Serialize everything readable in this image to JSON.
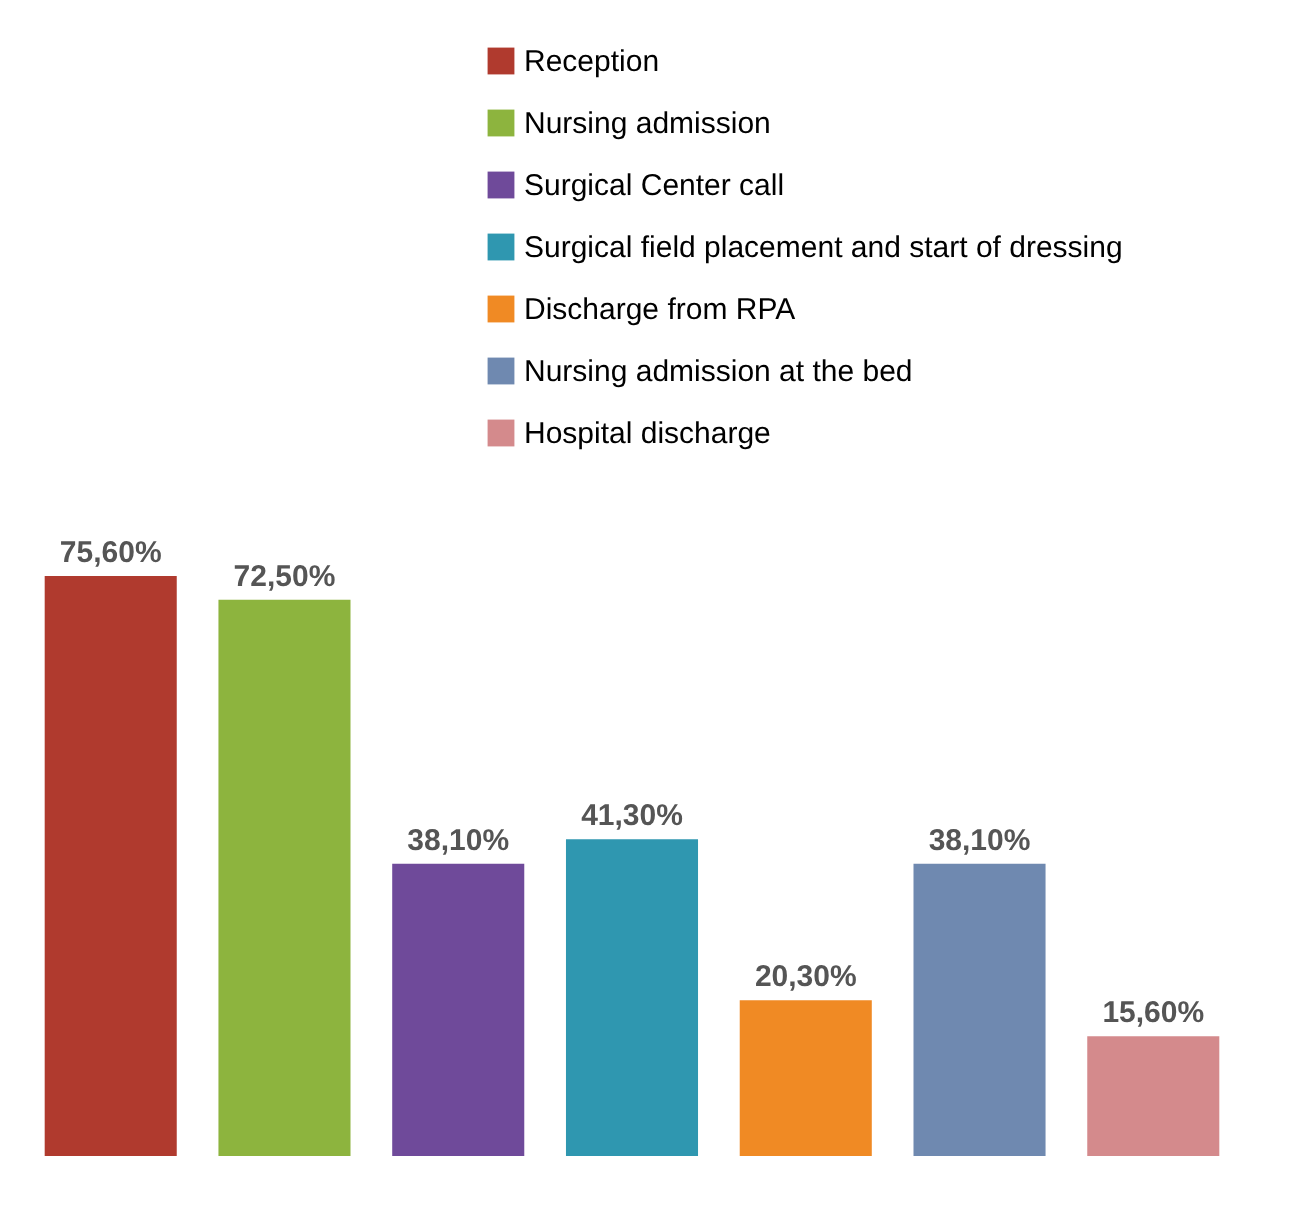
{
  "chart_data": {
    "type": "bar",
    "categories": [
      null,
      null,
      null,
      null,
      null,
      null,
      null
    ],
    "stacked": true,
    "series": [
      {
        "name": "Reception",
        "color": "#b03a2e",
        "values": [
          75.6,
          null,
          null,
          null,
          null,
          null,
          null
        ],
        "value_labels": [
          "75,60%",
          null,
          null,
          null,
          null,
          null,
          null
        ]
      },
      {
        "name": "Nursing admission",
        "color": "#8db43e",
        "values": [
          null,
          72.5,
          null,
          null,
          null,
          null,
          null
        ],
        "value_labels": [
          null,
          "72,50%",
          null,
          null,
          null,
          null,
          null
        ]
      },
      {
        "name": "Surgical Center call",
        "color": "#6f4a9a",
        "values": [
          null,
          null,
          38.1,
          null,
          null,
          null,
          null
        ],
        "value_labels": [
          null,
          null,
          "38,10%",
          null,
          null,
          null,
          null
        ]
      },
      {
        "name": "Surgical field placement and start of dressing",
        "color": "#2f97b0",
        "values": [
          null,
          null,
          null,
          41.3,
          null,
          null,
          null
        ],
        "value_labels": [
          null,
          null,
          null,
          "41,30%",
          null,
          null,
          null
        ]
      },
      {
        "name": "Discharge from RPA",
        "color": "#f08a24",
        "values": [
          null,
          null,
          null,
          null,
          20.3,
          null,
          null
        ],
        "value_labels": [
          null,
          null,
          null,
          null,
          "20,30%",
          null,
          null
        ]
      },
      {
        "name": "Nursing admission at the bed",
        "color": "#6f89b0",
        "values": [
          null,
          null,
          null,
          null,
          null,
          38.1,
          null
        ],
        "value_labels": [
          null,
          null,
          null,
          null,
          null,
          "38,10%",
          null
        ]
      },
      {
        "name": "Hospital discharge",
        "color": "#d48a8c",
        "values": [
          null,
          null,
          null,
          null,
          null,
          null,
          15.6
        ],
        "value_labels": [
          null,
          null,
          null,
          null,
          null,
          null,
          "15,60%"
        ]
      }
    ],
    "legend": "top right"
  }
}
